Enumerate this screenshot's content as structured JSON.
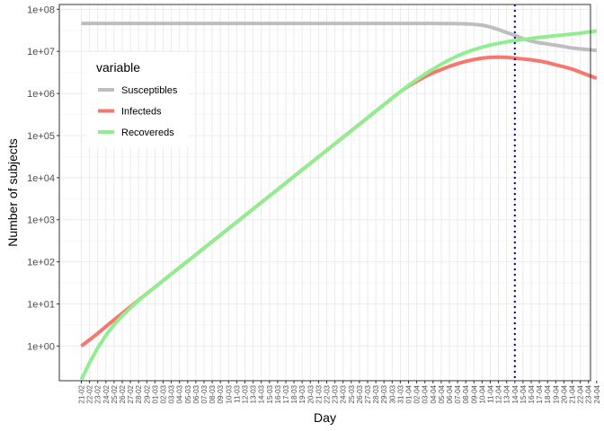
{
  "chart_data": {
    "type": "line",
    "xlabel": "Day",
    "ylabel": "Number of subjects",
    "y_scale": "log10",
    "ylim": [
      0.15,
      130000000
    ],
    "y_ticks": [
      {
        "value": 1,
        "label": "1e+00"
      },
      {
        "value": 10,
        "label": "1e+01"
      },
      {
        "value": 100,
        "label": "1e+02"
      },
      {
        "value": 1000,
        "label": "1e+03"
      },
      {
        "value": 10000,
        "label": "1e+04"
      },
      {
        "value": 100000,
        "label": "1e+05"
      },
      {
        "value": 1000000,
        "label": "1e+06"
      },
      {
        "value": 10000000,
        "label": "1e+07"
      },
      {
        "value": 100000000,
        "label": "1e+08"
      }
    ],
    "x": [
      "21-02",
      "22-02",
      "23-02",
      "24-02",
      "25-02",
      "26-02",
      "27-02",
      "28-02",
      "29-02",
      "01-03",
      "02-03",
      "03-03",
      "04-03",
      "05-03",
      "06-03",
      "07-03",
      "08-03",
      "09-03",
      "10-03",
      "11-03",
      "12-03",
      "13-03",
      "14-03",
      "15-03",
      "16-03",
      "17-03",
      "18-03",
      "19-03",
      "20-03",
      "21-03",
      "22-03",
      "23-03",
      "24-03",
      "25-03",
      "26-03",
      "27-03",
      "28-03",
      "29-03",
      "30-03",
      "31-03",
      "01-04",
      "02-04",
      "03-04",
      "04-04",
      "05-04",
      "06-04",
      "07-04",
      "08-04",
      "09-04",
      "10-04",
      "11-04",
      "12-04",
      "13-04",
      "14-04",
      "15-04",
      "16-04",
      "17-04",
      "18-04",
      "19-04",
      "20-04",
      "21-04",
      "22-04",
      "23-04",
      "24-04"
    ],
    "x_tick_labels": [
      "21-02",
      "22-02",
      "23-02",
      "24-02",
      "25-02",
      "26-02",
      "27-02",
      "28-02",
      "29-02",
      "01-03",
      "02-03",
      "03-03",
      "04-03",
      "05-03",
      "06-03",
      "07-03",
      "08-03",
      "09-03",
      "10-03",
      "11-03",
      "12-03",
      "13-03",
      "14-03",
      "15-03",
      "16-03",
      "17-03",
      "18-03",
      "19-03",
      "20-03",
      "21-03",
      "22-03",
      "23-03",
      "24-03",
      "25-03",
      "26-03",
      "27-03",
      "28-03",
      "29-03",
      "30-03",
      "31-03",
      "01-04",
      "02-04",
      "03-04",
      "04-04",
      "05-04",
      "06-04",
      "07-04",
      "08-04",
      "09-04",
      "10-04",
      "11-04",
      "12-04",
      "13-04",
      "14-04",
      "15-04",
      "16-04",
      "17-04",
      "18-04",
      "19-04",
      "20-04",
      "21-04",
      "22-04",
      "23-04",
      "24-04"
    ],
    "legend": {
      "title": "variable",
      "position": "top-left"
    },
    "vline": {
      "x": "14-04",
      "color": "#00008b",
      "style": "dotted"
    },
    "grid": true,
    "series": [
      {
        "name": "Susceptibles",
        "color": "#bebebe",
        "values": [
          46000000,
          46000000,
          46000000,
          46000000,
          46000000,
          46000000,
          46000000,
          46000000,
          46000000,
          46000000,
          46000000,
          46000000,
          46000000,
          46000000,
          46000000,
          46000000,
          46000000,
          46000000,
          46000000,
          46000000,
          46000000,
          46000000,
          46000000,
          46000000,
          46000000,
          46000000,
          46000000,
          46000000,
          46000000,
          46000000,
          46000000,
          46000000,
          46000000,
          46000000,
          46000000,
          46000000,
          46000000,
          46000000,
          46000000,
          46000000,
          46000000,
          46000000,
          46000000,
          46000000,
          45900000,
          45800000,
          45600000,
          45000000,
          44000000,
          42000000,
          38000000,
          33000000,
          28000000,
          24000000,
          20000000,
          17500000,
          16000000,
          15000000,
          14000000,
          13000000,
          12000000,
          11500000,
          11000000,
          10500000
        ]
      },
      {
        "name": "Infecteds",
        "color": "#f8766d",
        "values": [
          1,
          1.4,
          2,
          2.9,
          4.2,
          6,
          8.6,
          12.3,
          17.6,
          25,
          36,
          51,
          73,
          104,
          148,
          212,
          302,
          432,
          617,
          881,
          1260,
          1800,
          2570,
          3670,
          5240,
          7490,
          10700,
          15300,
          21800,
          31200,
          44600,
          63700,
          91000,
          130000,
          186000,
          265000,
          379000,
          541000,
          773000,
          1100000,
          1500000,
          1950000,
          2500000,
          3100000,
          3700000,
          4400000,
          5100000,
          5800000,
          6400000,
          6900000,
          7200000,
          7300000,
          7200000,
          6900000,
          6600000,
          6300000,
          5900000,
          5400000,
          4800000,
          4300000,
          3800000,
          3200000,
          2700000,
          2300000
        ]
      },
      {
        "name": "Recovereds",
        "color": "#90ee90",
        "values": [
          0.16,
          0.4,
          0.9,
          1.8,
          3.2,
          5.2,
          8,
          12,
          17.5,
          25,
          36,
          51,
          73,
          104,
          148,
          212,
          302,
          432,
          617,
          881,
          1260,
          1800,
          2570,
          3670,
          5240,
          7490,
          10700,
          15300,
          21800,
          31200,
          44600,
          63700,
          91000,
          130000,
          186000,
          265000,
          379000,
          541000,
          773000,
          1100000,
          1560000,
          2130000,
          2870000,
          3800000,
          4950000,
          6300000,
          7800000,
          9400000,
          11000000,
          12600000,
          14100000,
          15500000,
          16800000,
          18000000,
          19200000,
          20300000,
          21400000,
          22500000,
          23600000,
          24700000,
          25800000,
          27000000,
          28800000,
          30500000
        ]
      }
    ]
  }
}
